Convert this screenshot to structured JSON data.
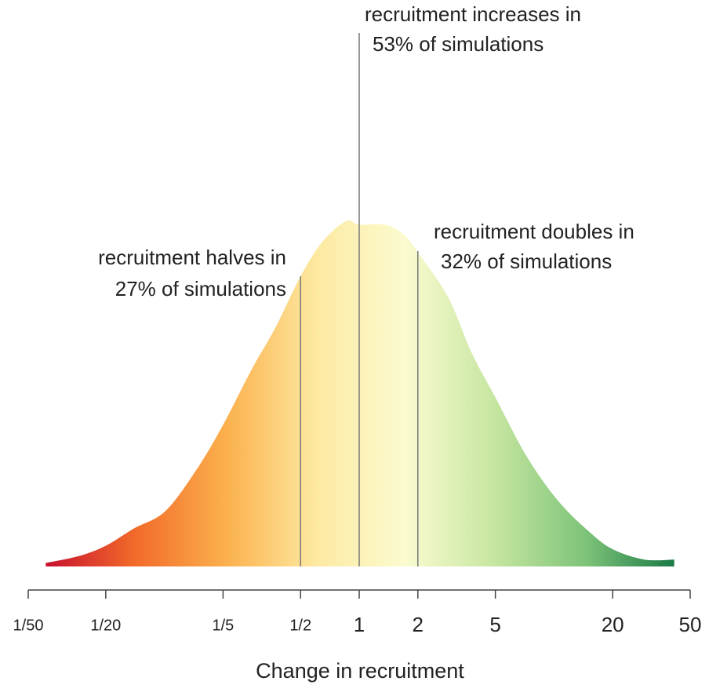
{
  "chart_data": {
    "type": "area",
    "x_label": "Change in recruitment",
    "log_x": true,
    "x": [
      0.0246,
      0.0363,
      0.05,
      0.0697,
      0.101,
      0.146,
      0.2,
      0.28,
      0.37,
      0.5,
      0.646,
      0.854,
      1,
      1.36,
      1.71,
      2,
      2.86,
      3.77,
      5,
      7.22,
      10.5,
      15.2,
      20,
      29.1,
      41.4
    ],
    "y": [
      0.01,
      0.03,
      0.06,
      0.11,
      0.16,
      0.28,
      0.41,
      0.57,
      0.69,
      0.84,
      0.94,
      1.0,
      0.99,
      0.99,
      0.96,
      0.91,
      0.78,
      0.62,
      0.49,
      0.32,
      0.19,
      0.1,
      0.05,
      0.02,
      0.02
    ],
    "xlim": [
      0.02,
      50
    ],
    "ylim": [
      0,
      1
    ],
    "xticks": [
      {
        "value": 0.02,
        "label": "1/50"
      },
      {
        "value": 0.05,
        "label": "1/20"
      },
      {
        "value": 0.2,
        "label": "1/5"
      },
      {
        "value": 0.5,
        "label": "1/2"
      },
      1,
      2,
      5,
      20,
      50
    ],
    "colors": [
      "#c8102e",
      "#f26b2a",
      "#fbb04c",
      "#fde9a0",
      "#fbfbd0",
      "#c6e6a0",
      "#7fc47a",
      "#1a7a45"
    ],
    "reference_lines": [
      {
        "value": 0.5,
        "lines": [
          "recruitment halves in",
          "27% of simulations"
        ]
      },
      {
        "value": 1,
        "lines": [
          "recruitment increases in",
          "53% of simulations"
        ]
      },
      {
        "value": 2,
        "lines": [
          "recruitment doubles in",
          "32% of simulations"
        ]
      }
    ]
  }
}
